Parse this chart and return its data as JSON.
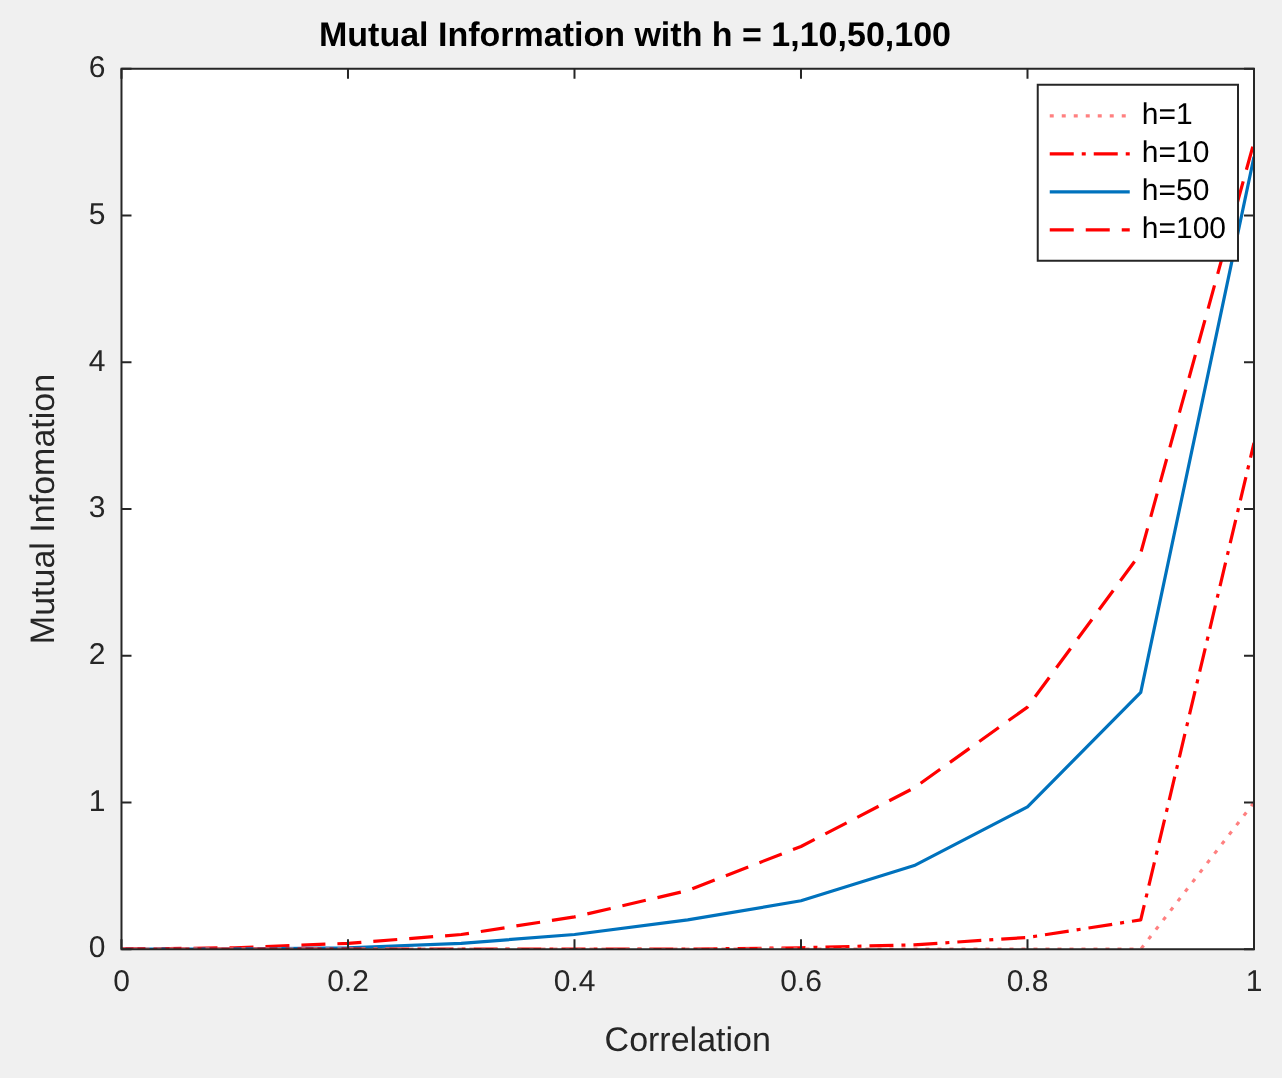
{
  "chart_data": {
    "type": "line",
    "title": "Mutual Information with h = 1,10,50,100",
    "xlabel": "Correlation",
    "ylabel": "Mutual Infomation",
    "x": [
      0,
      0.1,
      0.2,
      0.3,
      0.4,
      0.5,
      0.6,
      0.7,
      0.8,
      0.9,
      1
    ],
    "series": [
      {
        "name": "h=1",
        "color": "#ff8080",
        "line_style": "dotted",
        "values": [
          0,
          0,
          0,
          0,
          0,
          0,
          0,
          0,
          0,
          0,
          1.0
        ]
      },
      {
        "name": "h=10",
        "color": "#ff0000",
        "line_style": "dashdot",
        "values": [
          0,
          0,
          0,
          0,
          0,
          0,
          0.01,
          0.03,
          0.08,
          0.2,
          3.45
        ]
      },
      {
        "name": "h=50",
        "color": "#0072bd",
        "line_style": "solid",
        "values": [
          0,
          0,
          0.01,
          0.04,
          0.1,
          0.2,
          0.33,
          0.57,
          0.97,
          1.75,
          5.4
        ]
      },
      {
        "name": "h=100",
        "color": "#ff0000",
        "line_style": "dashed",
        "values": [
          0,
          0.01,
          0.04,
          0.1,
          0.22,
          0.4,
          0.7,
          1.1,
          1.65,
          2.7,
          5.5
        ]
      }
    ],
    "xlim": [
      0,
      1
    ],
    "xticks": [
      0,
      0.2,
      0.4,
      0.6,
      0.8,
      1
    ],
    "ylim": [
      0,
      6
    ],
    "yticks": [
      0,
      1,
      2,
      3,
      4,
      5,
      6
    ],
    "grid": false,
    "legend": "top right",
    "marker": "none"
  }
}
